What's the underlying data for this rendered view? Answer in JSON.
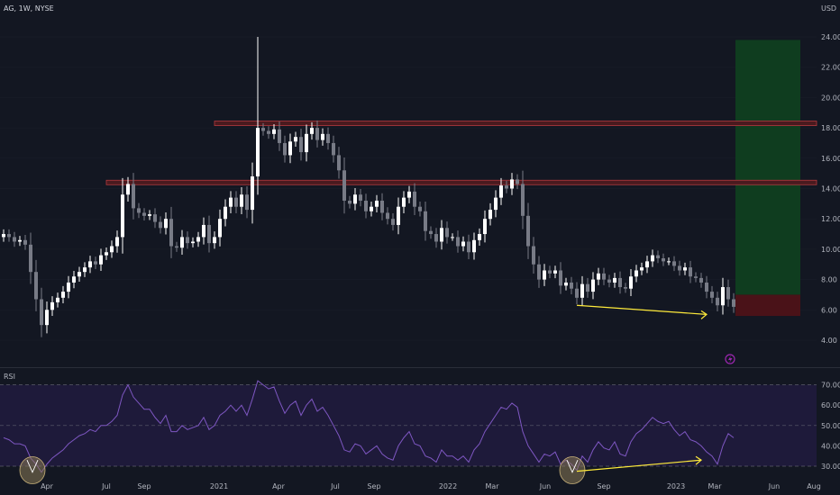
{
  "header": {
    "title": "AG, 1W, NYSE",
    "currency": "USD"
  },
  "rsi_panel": {
    "label": "RSI"
  },
  "colors": {
    "background": "#131722",
    "grid": "#2a2e39",
    "candle_up": "#ffffff",
    "candle_down": "#787b86",
    "resistance_fill": "#4a1a1f",
    "resistance_border": "#b23a3e",
    "target_zone": "#0f3d1f",
    "stop_zone": "#4a1218",
    "divergence_line": "#ffeb3b",
    "rsi_line": "#7e57c2",
    "rsi_band": "#1e1a3a",
    "highlight_circle": "#8a7a55"
  },
  "chart_data": [
    {
      "type": "candlestick",
      "title": "AG, 1W, NYSE",
      "ylabel": "USD",
      "ylim": [
        3.2,
        25.0
      ],
      "yticks": [
        4,
        6,
        8,
        10,
        12,
        14,
        16,
        18,
        20,
        22,
        24
      ],
      "ytick_labels": [
        "4.00",
        "6.00",
        "8.00",
        "10.00",
        "12.00",
        "14.00",
        "16.00",
        "18.00",
        "20.00",
        "22.00",
        "24.00"
      ],
      "xtick_labels": [
        "Apr",
        "Jul",
        "Sep",
        "2021",
        "Apr",
        "Jul",
        "Sep",
        "2022",
        "Mar",
        "Jun",
        "Sep",
        "2023",
        "Mar",
        "Jun",
        "Aug"
      ],
      "closes": [
        11.0,
        10.8,
        10.5,
        10.6,
        10.3,
        8.5,
        6.7,
        5.0,
        6.0,
        6.5,
        6.8,
        7.2,
        7.8,
        8.2,
        8.5,
        8.8,
        9.2,
        9.0,
        9.6,
        9.8,
        10.2,
        10.8,
        13.6,
        14.3,
        12.7,
        12.4,
        12.2,
        12.3,
        11.8,
        11.4,
        12.0,
        10.2,
        10.1,
        10.8,
        10.4,
        10.5,
        10.8,
        11.6,
        10.4,
        10.8,
        12.0,
        12.8,
        13.4,
        12.8,
        13.6,
        12.6,
        14.8,
        18.0,
        17.8,
        17.6,
        17.9,
        17.0,
        16.2,
        17.1,
        17.4,
        16.4,
        17.6,
        18.0,
        17.2,
        17.6,
        17.0,
        16.2,
        15.2,
        13.2,
        13.0,
        13.6,
        13.2,
        12.5,
        12.8,
        13.2,
        12.4,
        12.0,
        11.6,
        12.8,
        13.4,
        13.8,
        12.8,
        12.5,
        11.2,
        11.0,
        10.5,
        11.4,
        10.8,
        10.8,
        10.2,
        10.5,
        9.8,
        10.6,
        11.0,
        12.0,
        12.6,
        13.4,
        14.2,
        14.0,
        14.6,
        14.3,
        12.2,
        10.2,
        9.0,
        8.0,
        8.6,
        8.4,
        8.6,
        7.6,
        7.8,
        7.4,
        6.8,
        7.7,
        7.2,
        8.0,
        8.4,
        8.0,
        7.8,
        8.1,
        7.5,
        7.4,
        8.2,
        8.6,
        8.8,
        9.2,
        9.6,
        9.4,
        9.2,
        9.2,
        8.9,
        8.6,
        8.8,
        8.2,
        8.1,
        7.8,
        7.2,
        6.8,
        6.3,
        7.5,
        6.7,
        6.2
      ],
      "annotations": {
        "resistance_levels": [
          18.3,
          14.4
        ],
        "target_zone": [
          7.0,
          23.8
        ],
        "stop_zone": [
          5.6,
          7.0
        ],
        "divergence_price": [
          6.3,
          5.7
        ]
      }
    },
    {
      "type": "line",
      "title": "RSI",
      "ylim": [
        25,
        75
      ],
      "yticks": [
        30,
        40,
        50,
        60,
        70
      ],
      "ytick_labels": [
        "30.00",
        "40.00",
        "50.00",
        "60.00",
        "70.00"
      ],
      "bands": [
        30,
        50,
        70
      ],
      "values": [
        44,
        43,
        41,
        41,
        40,
        34,
        31,
        27,
        31,
        34,
        36,
        38,
        41,
        43,
        45,
        46,
        48,
        47,
        50,
        50,
        52,
        55,
        65,
        70,
        64,
        61,
        58,
        58,
        54,
        51,
        55,
        47,
        47,
        50,
        48,
        49,
        50,
        54,
        48,
        50,
        55,
        57,
        60,
        57,
        60,
        55,
        63,
        72,
        70,
        68,
        69,
        62,
        56,
        60,
        62,
        55,
        60,
        63,
        57,
        59,
        55,
        50,
        45,
        38,
        37,
        41,
        40,
        36,
        38,
        40,
        36,
        34,
        33,
        40,
        44,
        47,
        41,
        40,
        35,
        34,
        32,
        38,
        35,
        35,
        33,
        35,
        32,
        38,
        41,
        47,
        51,
        55,
        59,
        58,
        61,
        59,
        47,
        40,
        36,
        32,
        36,
        35,
        37,
        31,
        33,
        31,
        28,
        35,
        32,
        38,
        42,
        39,
        38,
        42,
        36,
        35,
        42,
        46,
        48,
        51,
        54,
        52,
        51,
        52,
        48,
        45,
        47,
        43,
        42,
        40,
        37,
        35,
        31,
        40,
        46,
        44
      ],
      "annotations": {
        "divergence_rsi": [
          27.5,
          33
        ]
      }
    }
  ]
}
